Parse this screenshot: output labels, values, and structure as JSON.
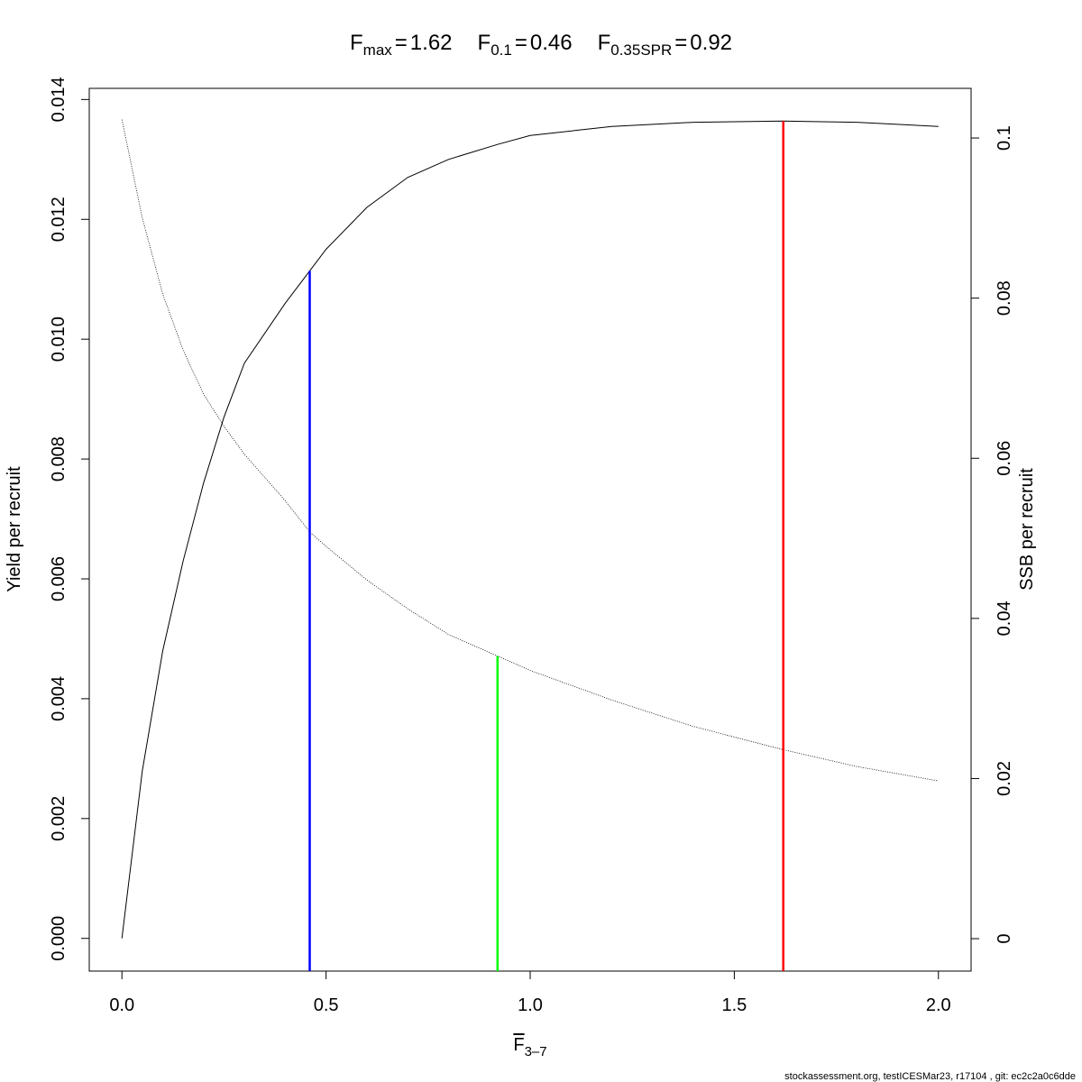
{
  "chart_data": {
    "type": "line",
    "title_items": [
      {
        "main": "F",
        "sub": "max",
        "op": "=",
        "ref": 0
      },
      {
        "main": "F",
        "sub": "0.1",
        "op": "=",
        "ref": 1
      },
      {
        "main": "F",
        "sub": "0.35SPR",
        "op": "=",
        "ref": 2
      }
    ],
    "xlabel": {
      "main": "F",
      "sub": "3–7"
    },
    "ylabel": "Yield per recruit",
    "y2label": "SSB per recruit",
    "footer": "stockassessment.org, testICESMar23, r17104 , git: ec2c2a0c6dde",
    "x": [
      0,
      0.05,
      0.1,
      0.15,
      0.2,
      0.25,
      0.3,
      0.4,
      0.46,
      0.5,
      0.6,
      0.7,
      0.8,
      0.92,
      1.0,
      1.2,
      1.4,
      1.62,
      1.8,
      2.0
    ],
    "series": [
      {
        "name": "Yield per recruit",
        "color": "#000000",
        "style": "solid",
        "values": [
          0,
          0.0028,
          0.0048,
          0.0063,
          0.0076,
          0.0087,
          0.0096,
          0.0106,
          0.01114,
          0.0115,
          0.0122,
          0.0127,
          0.013,
          0.01325,
          0.0134,
          0.01355,
          0.01362,
          0.01364,
          0.01362,
          0.01355
        ]
      },
      {
        "name": "SSB per recruit",
        "color": "#000000",
        "style": "dotted",
        "axis": "y2",
        "values": [
          0.1023,
          0.09,
          0.0805,
          0.0735,
          0.068,
          0.064,
          0.0605,
          0.0547,
          0.0508,
          0.049,
          0.0448,
          0.0412,
          0.038,
          0.0353,
          0.0335,
          0.0298,
          0.0265,
          0.0236,
          0.0215,
          0.0197
        ]
      }
    ],
    "reference_lines": [
      {
        "x": 1.62,
        "y": 0.01364,
        "color": "#ff0000"
      },
      {
        "x": 0.46,
        "y": 0.01114,
        "color": "#0000ff"
      },
      {
        "x": 0.92,
        "y": 0.0353,
        "color": "#00ff00",
        "axis": "y2"
      }
    ],
    "xlim": [
      -0.08,
      2.08
    ],
    "xticks": [
      {
        "value": 0,
        "label": "0.0"
      },
      0.5,
      {
        "value": 1,
        "label": "1.0"
      },
      1.5,
      {
        "value": 2,
        "label": "2.0"
      }
    ],
    "ylim": [
      -0.000546,
      0.014186
    ],
    "yticks": [
      {
        "value": 0,
        "label": "0.000"
      },
      {
        "value": 0.002,
        "label": "0.002"
      },
      {
        "value": 0.004,
        "label": "0.004"
      },
      {
        "value": 0.006,
        "label": "0.006"
      },
      {
        "value": 0.008,
        "label": "0.008"
      },
      {
        "value": 0.01,
        "label": "0.010"
      },
      {
        "value": 0.012,
        "label": "0.012"
      },
      {
        "value": 0.014,
        "label": "0.014"
      }
    ],
    "y2lim": [
      -0.00405,
      0.1062
    ],
    "y2ticks": [
      0,
      0.02,
      0.04,
      0.06,
      0.08,
      0.1
    ],
    "grid": false
  }
}
